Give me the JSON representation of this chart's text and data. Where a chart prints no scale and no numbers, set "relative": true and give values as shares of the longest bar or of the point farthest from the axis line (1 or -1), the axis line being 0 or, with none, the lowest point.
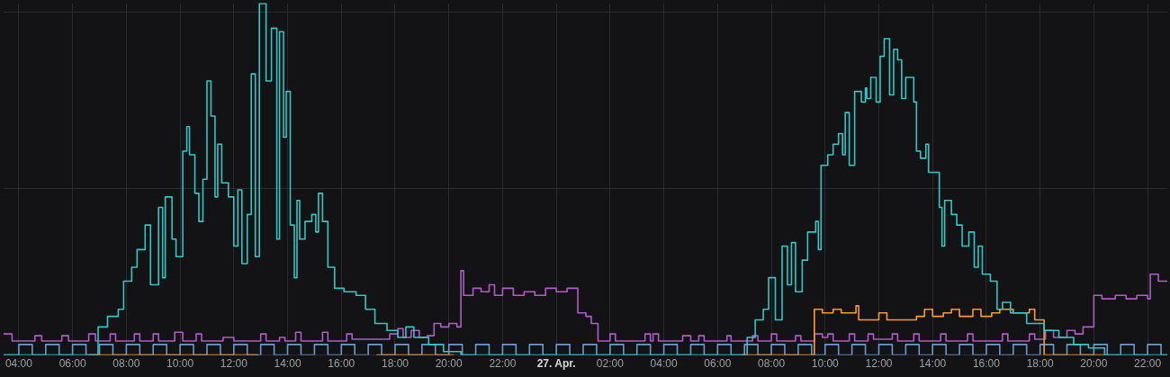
{
  "chart_data": {
    "type": "step",
    "relative": true,
    "grid": true,
    "line_style": "solid",
    "marker": "none",
    "xlim": [
      "--04-26T03:26",
      "--04-27T22:44"
    ],
    "xticks": [
      {
        "value": "--04-26T04:00",
        "label": "04:00"
      },
      {
        "value": "--04-26T06:00",
        "label": "06:00"
      },
      {
        "value": "--04-26T08:00",
        "label": "08:00"
      },
      {
        "value": "--04-26T10:00",
        "label": "10:00"
      },
      {
        "value": "--04-26T12:00",
        "label": "12:00"
      },
      {
        "value": "--04-26T14:00",
        "label": "14:00"
      },
      {
        "value": "--04-26T16:00",
        "label": "16:00"
      },
      {
        "value": "--04-26T18:00",
        "label": "18:00"
      },
      {
        "value": "--04-26T20:00",
        "label": "20:00"
      },
      {
        "value": "--04-26T22:00",
        "label": "22:00"
      },
      {
        "value": "--04-27T00:00",
        "label": "27. Apr."
      },
      {
        "value": "--04-27T02:00",
        "label": "02:00"
      },
      {
        "value": "--04-27T04:00",
        "label": "04:00"
      },
      {
        "value": "--04-27T06:00",
        "label": "06:00"
      },
      {
        "value": "--04-27T08:00",
        "label": "08:00"
      },
      {
        "value": "--04-27T10:00",
        "label": "10:00"
      },
      {
        "value": "--04-27T12:00",
        "label": "12:00"
      },
      {
        "value": "--04-27T14:00",
        "label": "14:00"
      },
      {
        "value": "--04-27T16:00",
        "label": "16:00"
      },
      {
        "value": "--04-27T18:00",
        "label": "18:00"
      },
      {
        "value": "--04-27T20:00",
        "label": "20:00"
      },
      {
        "value": "--04-27T22:00",
        "label": "22:00"
      }
    ],
    "series": [
      {
        "color": "#33c6c6",
        "x": [
          "--04-26T03:26",
          "--04-26T06:36",
          "--04-26T06:57",
          "--04-26T07:18",
          "--04-26T07:42",
          "--04-26T07:54",
          "--04-26T08:12",
          "--04-26T08:24",
          "--04-26T08:42",
          "--04-26T08:54",
          "--04-26T09:12",
          "--04-26T09:21",
          "--04-26T09:27",
          "--04-26T09:42",
          "--04-26T09:51",
          "--04-26T10:06",
          "--04-26T10:15",
          "--04-26T10:21",
          "--04-26T10:33",
          "--04-26T10:42",
          "--04-26T10:51",
          "--04-26T11:00",
          "--04-26T11:09",
          "--04-26T11:18",
          "--04-26T11:24",
          "--04-26T11:33",
          "--04-26T11:48",
          "--04-26T12:00",
          "--04-26T12:09",
          "--04-26T12:18",
          "--04-26T12:30",
          "--04-26T12:39",
          "--04-26T12:48",
          "--04-26T12:57",
          "--04-26T13:12",
          "--04-26T13:24",
          "--04-26T13:36",
          "--04-26T13:42",
          "--04-26T13:51",
          "--04-26T13:57",
          "--04-26T14:06",
          "--04-26T14:15",
          "--04-26T14:21",
          "--04-26T14:27",
          "--04-26T14:39",
          "--04-26T14:54",
          "--04-26T15:03",
          "--04-26T15:09",
          "--04-26T15:18",
          "--04-26T15:30",
          "--04-26T15:45",
          "--04-26T16:06",
          "--04-26T16:33",
          "--04-26T16:54",
          "--04-26T17:15",
          "--04-26T17:42",
          "--04-26T18:06",
          "--04-26T18:24",
          "--04-26T18:42",
          "--04-26T19:15",
          "--04-26T19:48",
          "--04-26T20:27",
          "--04-27T06:45",
          "--04-27T07:06",
          "--04-27T07:24",
          "--04-27T07:42",
          "--04-27T07:54",
          "--04-27T08:09",
          "--04-27T08:24",
          "--04-27T08:36",
          "--04-27T08:45",
          "--04-27T08:54",
          "--04-27T09:09",
          "--04-27T09:21",
          "--04-27T09:39",
          "--04-27T09:45",
          "--04-27T09:51",
          "--04-27T10:06",
          "--04-27T10:18",
          "--04-27T10:30",
          "--04-27T10:39",
          "--04-27T10:45",
          "--04-27T10:54",
          "--04-27T11:06",
          "--04-27T11:21",
          "--04-27T11:30",
          "--04-27T11:33",
          "--04-27T11:42",
          "--04-27T11:54",
          "--04-27T12:03",
          "--04-27T12:12",
          "--04-27T12:24",
          "--04-27T12:33",
          "--04-27T12:42",
          "--04-27T12:51",
          "--04-27T13:00",
          "--04-27T13:18",
          "--04-27T13:24",
          "--04-27T13:33",
          "--04-27T13:45",
          "--04-27T13:51",
          "--04-27T14:15",
          "--04-27T14:21",
          "--04-27T14:27",
          "--04-27T14:42",
          "--04-27T14:54",
          "--04-27T15:06",
          "--04-27T15:21",
          "--04-27T15:33",
          "--04-27T15:42",
          "--04-27T15:51",
          "--04-27T16:09",
          "--04-27T16:24",
          "--04-27T16:36",
          "--04-27T16:54",
          "--04-27T17:30",
          "--04-27T18:09",
          "--04-27T18:42",
          "--04-27T19:15",
          "--04-27T19:48",
          "--04-27T20:24",
          "--04-27T22:44"
        ],
        "values": [
          0,
          0,
          0.08,
          0.11,
          0.13,
          0.21,
          0.25,
          0.3,
          0.37,
          0.2,
          0.42,
          0.22,
          0.45,
          0.33,
          0.28,
          0.58,
          0.65,
          0.57,
          0.46,
          0.38,
          0.5,
          0.78,
          0.68,
          0.45,
          0.6,
          0.49,
          0.45,
          0.31,
          0.47,
          0.26,
          0.4,
          0.8,
          0.28,
          1,
          0.78,
          0.93,
          0.33,
          0.92,
          0.62,
          0.75,
          0.37,
          0.22,
          0.44,
          0.33,
          0.38,
          0.4,
          0.35,
          0.46,
          0.38,
          0.25,
          0.19,
          0.18,
          0.17,
          0.13,
          0.09,
          0.07,
          0.05,
          0.08,
          0.05,
          0.03,
          0.01,
          0,
          0,
          0.05,
          0.1,
          0.13,
          0.22,
          0.1,
          0.31,
          0.2,
          0.32,
          0.18,
          0.27,
          0.35,
          0.38,
          0.3,
          0.54,
          0.57,
          0.6,
          0.63,
          0.57,
          0.69,
          0.54,
          0.75,
          0.72,
          0.76,
          0.73,
          0.79,
          0.72,
          0.85,
          0.9,
          0.74,
          0.87,
          0.84,
          0.73,
          0.79,
          0.72,
          0.58,
          0.56,
          0.6,
          0.52,
          0.42,
          0.31,
          0.44,
          0.4,
          0.37,
          0.31,
          0.35,
          0.25,
          0.31,
          0.23,
          0.21,
          0.13,
          0.15,
          0.12,
          0.09,
          0.07,
          0.05,
          0.03,
          0.02,
          0,
          0
        ]
      },
      {
        "color": "#ff9830",
        "x": [
          "--04-26T06:36",
          "--04-26T12:54",
          "--04-26T13:00",
          "--04-26T17:18",
          "--04-26T20:12",
          "--04-26T20:18",
          "--04-27T06:54",
          "--04-27T09:36",
          "--04-27T09:54",
          "--04-27T10:18",
          "--04-27T10:36",
          "--04-27T11:09",
          "--04-27T11:15",
          "--04-27T11:42",
          "--04-27T12:00",
          "--04-27T12:18",
          "--04-27T13:00",
          "--04-27T13:24",
          "--04-27T13:42",
          "--04-27T14:00",
          "--04-27T14:24",
          "--04-27T14:42",
          "--04-27T15:00",
          "--04-27T15:30",
          "--04-27T15:48",
          "--04-27T16:12",
          "--04-27T16:30",
          "--04-27T17:00",
          "--04-27T17:36",
          "--04-27T17:48",
          "--04-27T18:09",
          "--04-27T20:30"
        ],
        "values": [
          0,
          0,
          null,
          0,
          0,
          null,
          0,
          0.13,
          0.12,
          0.13,
          0.12,
          0.14,
          0.1,
          0.1,
          0.12,
          0.1,
          0.1,
          0.11,
          0.13,
          0.11,
          0.12,
          0.13,
          0.11,
          0.13,
          0.11,
          0.12,
          0.13,
          0.12,
          0.13,
          0.1,
          0,
          0
        ]
      },
      {
        "color": "#b05cc8",
        "x": [
          "--04-26T03:26",
          "--04-26T03:45",
          "--04-26T04:36",
          "--04-26T04:51",
          "--04-26T05:36",
          "--04-26T05:51",
          "--04-26T06:36",
          "--04-26T06:51",
          "--04-26T07:24",
          "--04-26T07:36",
          "--04-26T08:18",
          "--04-26T08:30",
          "--04-26T09:00",
          "--04-26T09:12",
          "--04-26T09:48",
          "--04-26T10:06",
          "--04-26T10:36",
          "--04-26T10:48",
          "--04-26T11:36",
          "--04-26T12:00",
          "--04-26T13:00",
          "--04-26T13:12",
          "--04-26T13:42",
          "--04-26T13:54",
          "--04-26T14:18",
          "--04-26T14:30",
          "--04-26T15:18",
          "--04-26T15:30",
          "--04-26T16:12",
          "--04-26T16:24",
          "--04-26T17:48",
          "--04-26T18:06",
          "--04-26T18:18",
          "--04-26T18:36",
          "--04-26T18:54",
          "--04-26T19:12",
          "--04-26T19:27",
          "--04-26T19:42",
          "--04-26T20:00",
          "--04-26T20:18",
          "--04-26T20:27",
          "--04-26T20:33",
          "--04-26T20:54",
          "--04-26T21:12",
          "--04-26T21:30",
          "--04-26T21:42",
          "--04-26T22:00",
          "--04-26T22:24",
          "--04-26T22:48",
          "--04-26T23:12",
          "--04-26T23:36",
          "--04-27T00:00",
          "--04-27T00:24",
          "--04-27T00:48",
          "--04-27T01:06",
          "--04-27T01:18",
          "--04-27T01:33",
          "--04-27T02:00",
          "--04-27T02:12",
          "--04-27T03:18",
          "--04-27T03:30",
          "--04-27T03:36",
          "--04-27T03:48",
          "--04-27T04:42",
          "--04-27T05:00",
          "--04-27T05:18",
          "--04-27T05:30",
          "--04-27T06:21",
          "--04-27T06:30",
          "--04-27T07:18",
          "--04-27T07:30",
          "--04-27T08:00",
          "--04-27T08:12",
          "--04-27T08:54",
          "--04-27T09:06",
          "--04-27T09:36",
          "--04-27T09:54",
          "--04-27T10:06",
          "--04-27T10:18",
          "--04-27T10:54",
          "--04-27T11:06",
          "--04-27T11:36",
          "--04-27T11:48",
          "--04-27T12:30",
          "--04-27T12:42",
          "--04-27T13:18",
          "--04-27T13:30",
          "--04-27T14:18",
          "--04-27T14:30",
          "--04-27T15:18",
          "--04-27T15:30",
          "--04-27T16:36",
          "--04-27T16:48",
          "--04-27T17:36",
          "--04-27T17:48",
          "--04-27T18:12",
          "--04-27T18:30",
          "--04-27T19:00",
          "--04-27T19:18",
          "--04-27T19:36",
          "--04-27T20:00",
          "--04-27T20:18",
          "--04-27T20:48",
          "--04-27T21:12",
          "--04-27T21:36",
          "--04-27T22:00",
          "--04-27T22:06",
          "--04-27T22:24",
          "--04-27T22:44"
        ],
        "values": [
          0.06,
          0.04,
          0.055,
          0.04,
          0.055,
          0.04,
          0.06,
          0.04,
          0.06,
          0.04,
          0.06,
          0.04,
          0.06,
          0.04,
          0.065,
          0.04,
          0.06,
          0.04,
          0.05,
          0.04,
          0.06,
          0.04,
          0.05,
          0.04,
          0.065,
          0.04,
          0.065,
          0.04,
          0.06,
          0.045,
          0.06,
          0.075,
          0.05,
          0.07,
          0.05,
          0.055,
          0.09,
          0.08,
          0.09,
          0.08,
          0.24,
          0.17,
          0.19,
          0.18,
          0.2,
          0.17,
          0.19,
          0.17,
          0.18,
          0.17,
          0.19,
          0.18,
          0.19,
          0.12,
          0.11,
          0.09,
          0.04,
          0.06,
          0.04,
          0.06,
          0.04,
          0.06,
          0.04,
          0.055,
          0.04,
          0.055,
          0.04,
          0.055,
          0.04,
          0.055,
          0.04,
          0.06,
          0.04,
          0.055,
          0.04,
          0.06,
          0.05,
          0.06,
          0.04,
          0.06,
          0.04,
          0.06,
          0.045,
          0.06,
          0.04,
          0.06,
          0.04,
          0.06,
          0.04,
          0.06,
          0.04,
          0.06,
          0.04,
          0.06,
          0.045,
          0.07,
          0.05,
          0.07,
          0.06,
          0.08,
          0.17,
          0.16,
          0.17,
          0.16,
          0.17,
          0.16,
          0.23,
          0.21,
          0.21
        ]
      },
      {
        "color": "#6a9bd0",
        "x": [
          "--04-26T03:26",
          "--04-26T04:00",
          "--04-26T04:30",
          "--04-26T05:00",
          "--04-26T05:30",
          "--04-26T06:00",
          "--04-26T06:30",
          "--04-26T07:00",
          "--04-26T07:30",
          "--04-26T08:00",
          "--04-26T08:30",
          "--04-26T09:00",
          "--04-26T09:30",
          "--04-26T10:00",
          "--04-26T10:30",
          "--04-26T11:00",
          "--04-26T11:30",
          "--04-26T12:00",
          "--04-26T12:30",
          "--04-26T13:00",
          "--04-26T13:30",
          "--04-26T14:00",
          "--04-26T14:30",
          "--04-26T15:00",
          "--04-26T15:30",
          "--04-26T16:00",
          "--04-26T16:30",
          "--04-26T17:00",
          "--04-26T17:30",
          "--04-26T18:00",
          "--04-26T18:30",
          "--04-26T19:00",
          "--04-26T19:30",
          "--04-26T20:00",
          "--04-26T20:30",
          "--04-26T21:00",
          "--04-26T21:30",
          "--04-26T22:00",
          "--04-26T22:30",
          "--04-26T23:00",
          "--04-26T23:30",
          "--04-27T00:00",
          "--04-27T00:30",
          "--04-27T01:00",
          "--04-27T01:30",
          "--04-27T02:00",
          "--04-27T02:30",
          "--04-27T03:00",
          "--04-27T03:30",
          "--04-27T04:00",
          "--04-27T04:30",
          "--04-27T05:00",
          "--04-27T05:30",
          "--04-27T06:00",
          "--04-27T06:30",
          "--04-27T07:00",
          "--04-27T07:30",
          "--04-27T08:00",
          "--04-27T08:30",
          "--04-27T09:00",
          "--04-27T09:30",
          "--04-27T10:00",
          "--04-27T10:30",
          "--04-27T11:00",
          "--04-27T11:30",
          "--04-27T12:00",
          "--04-27T12:30",
          "--04-27T13:00",
          "--04-27T13:30",
          "--04-27T14:00",
          "--04-27T14:30",
          "--04-27T15:00",
          "--04-27T15:30",
          "--04-27T16:00",
          "--04-27T16:30",
          "--04-27T17:00",
          "--04-27T17:30",
          "--04-27T18:00",
          "--04-27T18:30",
          "--04-27T19:00",
          "--04-27T19:30",
          "--04-27T20:00",
          "--04-27T20:30",
          "--04-27T21:00",
          "--04-27T21:30",
          "--04-27T22:00",
          "--04-27T22:30",
          "--04-27T22:44"
        ],
        "values": [
          0,
          0.03,
          0,
          0.03,
          0,
          0.03,
          0,
          0.03,
          0,
          0.03,
          0,
          0.03,
          0,
          0.03,
          0,
          0.03,
          0,
          0.03,
          0,
          0.03,
          0,
          0.03,
          0,
          0.03,
          0,
          0.03,
          0,
          0.03,
          0,
          0.03,
          0,
          0.03,
          0,
          0.03,
          0,
          0.03,
          0,
          0.03,
          0,
          0.03,
          0,
          0.03,
          0,
          0.03,
          0,
          0.03,
          0,
          0.03,
          0,
          0.03,
          0,
          0.03,
          0,
          0.03,
          0,
          0.03,
          0,
          0.03,
          0,
          0.03,
          0,
          0.03,
          0,
          0.03,
          0,
          0.03,
          0,
          0.03,
          0,
          0.03,
          0,
          0.03,
          0,
          0.03,
          0,
          0.03,
          0,
          0.03,
          0,
          0.03,
          0,
          0.03,
          0,
          0.03,
          0,
          0.03,
          0,
          0
        ]
      }
    ]
  }
}
